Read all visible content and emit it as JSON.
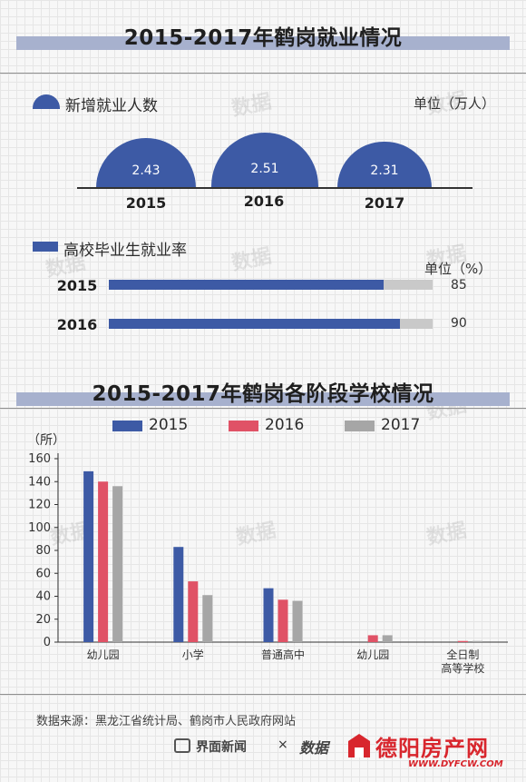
{
  "top": {
    "title": "2015-2017年鹤岗就业情况",
    "new_jobs": {
      "legend": "新增就业人数",
      "unit": "单位（万人）",
      "items": [
        {
          "year": "2015",
          "value": "2.43"
        },
        {
          "year": "2016",
          "value": "2.51"
        },
        {
          "year": "2017",
          "value": "2.31"
        }
      ]
    },
    "graduate_rate": {
      "legend": "高校毕业生就业率",
      "unit": "单位（%）",
      "items": [
        {
          "year": "2015",
          "value": "85",
          "fraction": 0.85
        },
        {
          "year": "2016",
          "value": "90",
          "fraction": 0.9
        }
      ]
    }
  },
  "chart_data": {
    "type": "bar",
    "title": "2015-2017年鹤岗各阶段学校情况",
    "ylabel": "（所）",
    "ylim": [
      0,
      160
    ],
    "yticks": [
      "0",
      "20",
      "40",
      "60",
      "80",
      "100",
      "120",
      "140",
      "160"
    ],
    "categories": [
      "幼儿园",
      "小学",
      "普通高中",
      "幼儿园",
      "全日制高等学校"
    ],
    "category_lines": [
      [
        "幼儿园"
      ],
      [
        "小学"
      ],
      [
        "普通高中"
      ],
      [
        "幼儿园"
      ],
      [
        "全日制",
        "高等学校"
      ]
    ],
    "series": [
      {
        "name": "2015",
        "color": "#3d5aa5",
        "values": [
          149,
          83,
          47,
          0,
          0
        ]
      },
      {
        "name": "2016",
        "color": "#e05266",
        "values": [
          140,
          53,
          37,
          6,
          1
        ]
      },
      {
        "name": "2017",
        "color": "#a6a6a6",
        "values": [
          136,
          41,
          36,
          6,
          1
        ]
      }
    ]
  },
  "footer": {
    "source": "数据来源：黑龙江省统计局、鹤岗市人民政府网站",
    "brand1": "界面新闻",
    "cross": "×",
    "brand2": "数据",
    "site_name": "德阳房产网",
    "site_url": "WWW.DYFCW.COM"
  }
}
